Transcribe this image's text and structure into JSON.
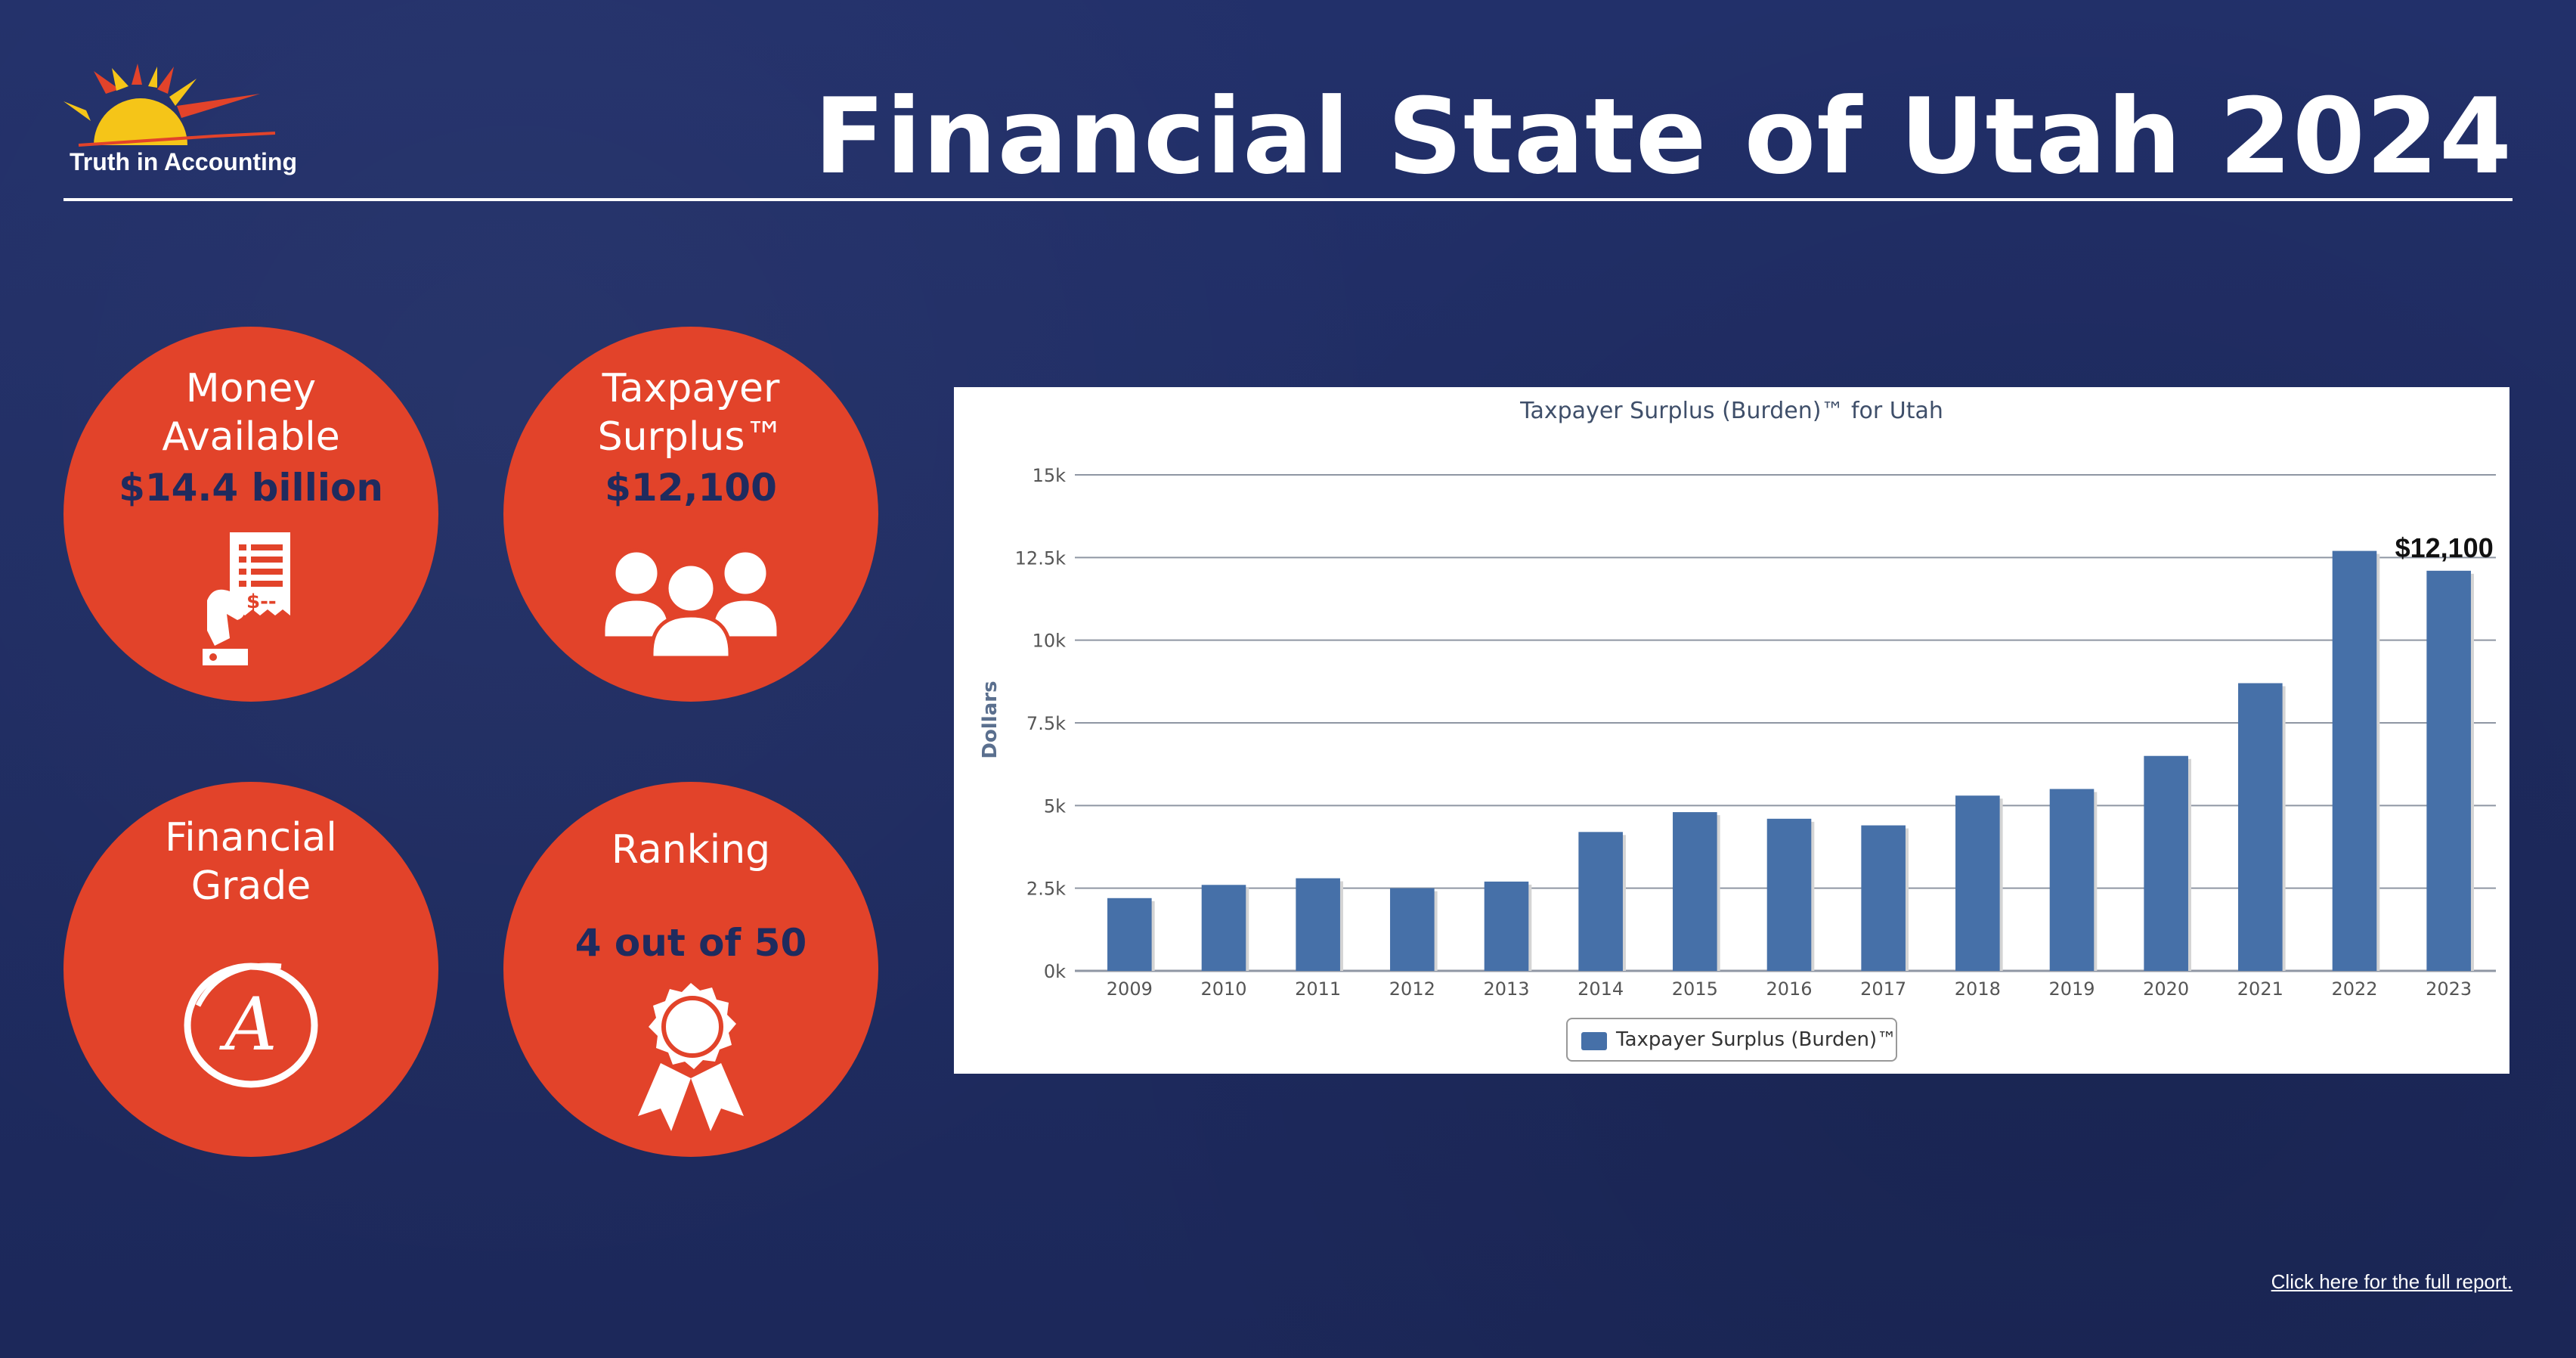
{
  "brand": {
    "logo_text": "Truth in Accounting",
    "accent": "#e2432a",
    "navy": "#1f2b5e"
  },
  "header": {
    "title": "Financial State of Utah 2024"
  },
  "circles": {
    "money": {
      "label_line1": "Money",
      "label_line2": "Available",
      "value": "$14.4 billion",
      "icon": "receipt-hand-icon"
    },
    "surplus": {
      "label_line1": "Taxpayer",
      "label_line2": "Surplus™",
      "value": "$12,100",
      "icon": "people-group-icon"
    },
    "grade": {
      "label_line1": "Financial",
      "label_line2": "Grade",
      "value": "A",
      "icon": "grade-circle-icon"
    },
    "ranking": {
      "label": "Ranking",
      "value": "4 out of 50",
      "icon": "award-ribbon-icon"
    }
  },
  "chart_data": {
    "type": "bar",
    "title": "Taxpayer Surplus (Burden)™ for Utah",
    "ylabel": "Dollars",
    "xlabel": "",
    "categories": [
      "2009",
      "2010",
      "2011",
      "2012",
      "2013",
      "2014",
      "2015",
      "2016",
      "2017",
      "2018",
      "2019",
      "2020",
      "2021",
      "2022",
      "2023"
    ],
    "series": [
      {
        "name": "Taxpayer Surplus (Burden)™",
        "color": "#4670a8",
        "values": [
          2200,
          2600,
          2800,
          2500,
          2700,
          4200,
          4800,
          4600,
          4400,
          5300,
          5500,
          6500,
          8700,
          12700,
          12100
        ]
      }
    ],
    "ylim": [
      0,
      15000
    ],
    "yticks": [
      {
        "value": 0,
        "label": "0k"
      },
      {
        "value": 2500,
        "label": "2.5k"
      },
      {
        "value": 5000,
        "label": "5k"
      },
      {
        "value": 7500,
        "label": "7.5k"
      },
      {
        "value": 10000,
        "label": "10k"
      },
      {
        "value": 12500,
        "label": "12.5k"
      },
      {
        "value": 15000,
        "label": "15k"
      }
    ],
    "annotations": [
      {
        "category": "2023",
        "text": "$12,100"
      }
    ],
    "grid": true,
    "legend_position": "bottom"
  },
  "footer": {
    "link_text": "Click here for the full report."
  }
}
